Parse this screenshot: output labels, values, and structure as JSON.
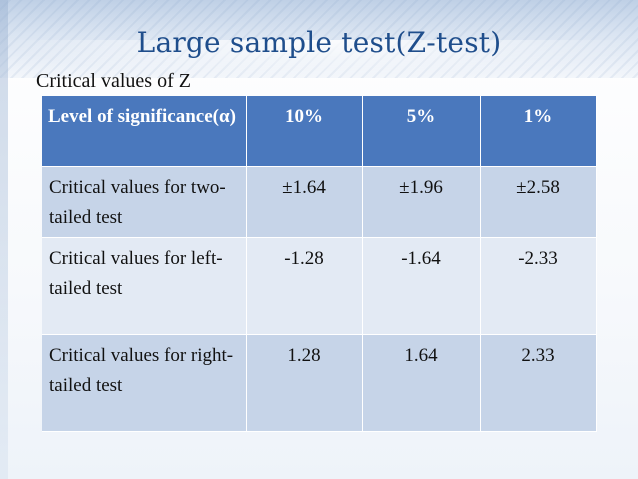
{
  "slide": {
    "title": "Large sample test(Z-test)",
    "subtitle": "Critical values of Z"
  },
  "table": {
    "header": {
      "label": "Level of significance(α)",
      "columns": [
        "10%",
        "5%",
        "1%"
      ]
    },
    "rows": [
      {
        "label": "Critical values for two-tailed test",
        "values": [
          "±1.64",
          "±1.96",
          "±2.58"
        ]
      },
      {
        "label": "Critical values for left-tailed test",
        "values": [
          "-1.28",
          "-1.64",
          "-2.33"
        ]
      },
      {
        "label": "Critical values for right-tailed test",
        "values": [
          "1.28",
          "1.64",
          "2.33"
        ]
      }
    ]
  },
  "colors": {
    "title": "#1f4e8c",
    "header_bg": "#4a78bd",
    "row_dark": "#c6d4e8",
    "row_light": "#e3eaf4"
  }
}
